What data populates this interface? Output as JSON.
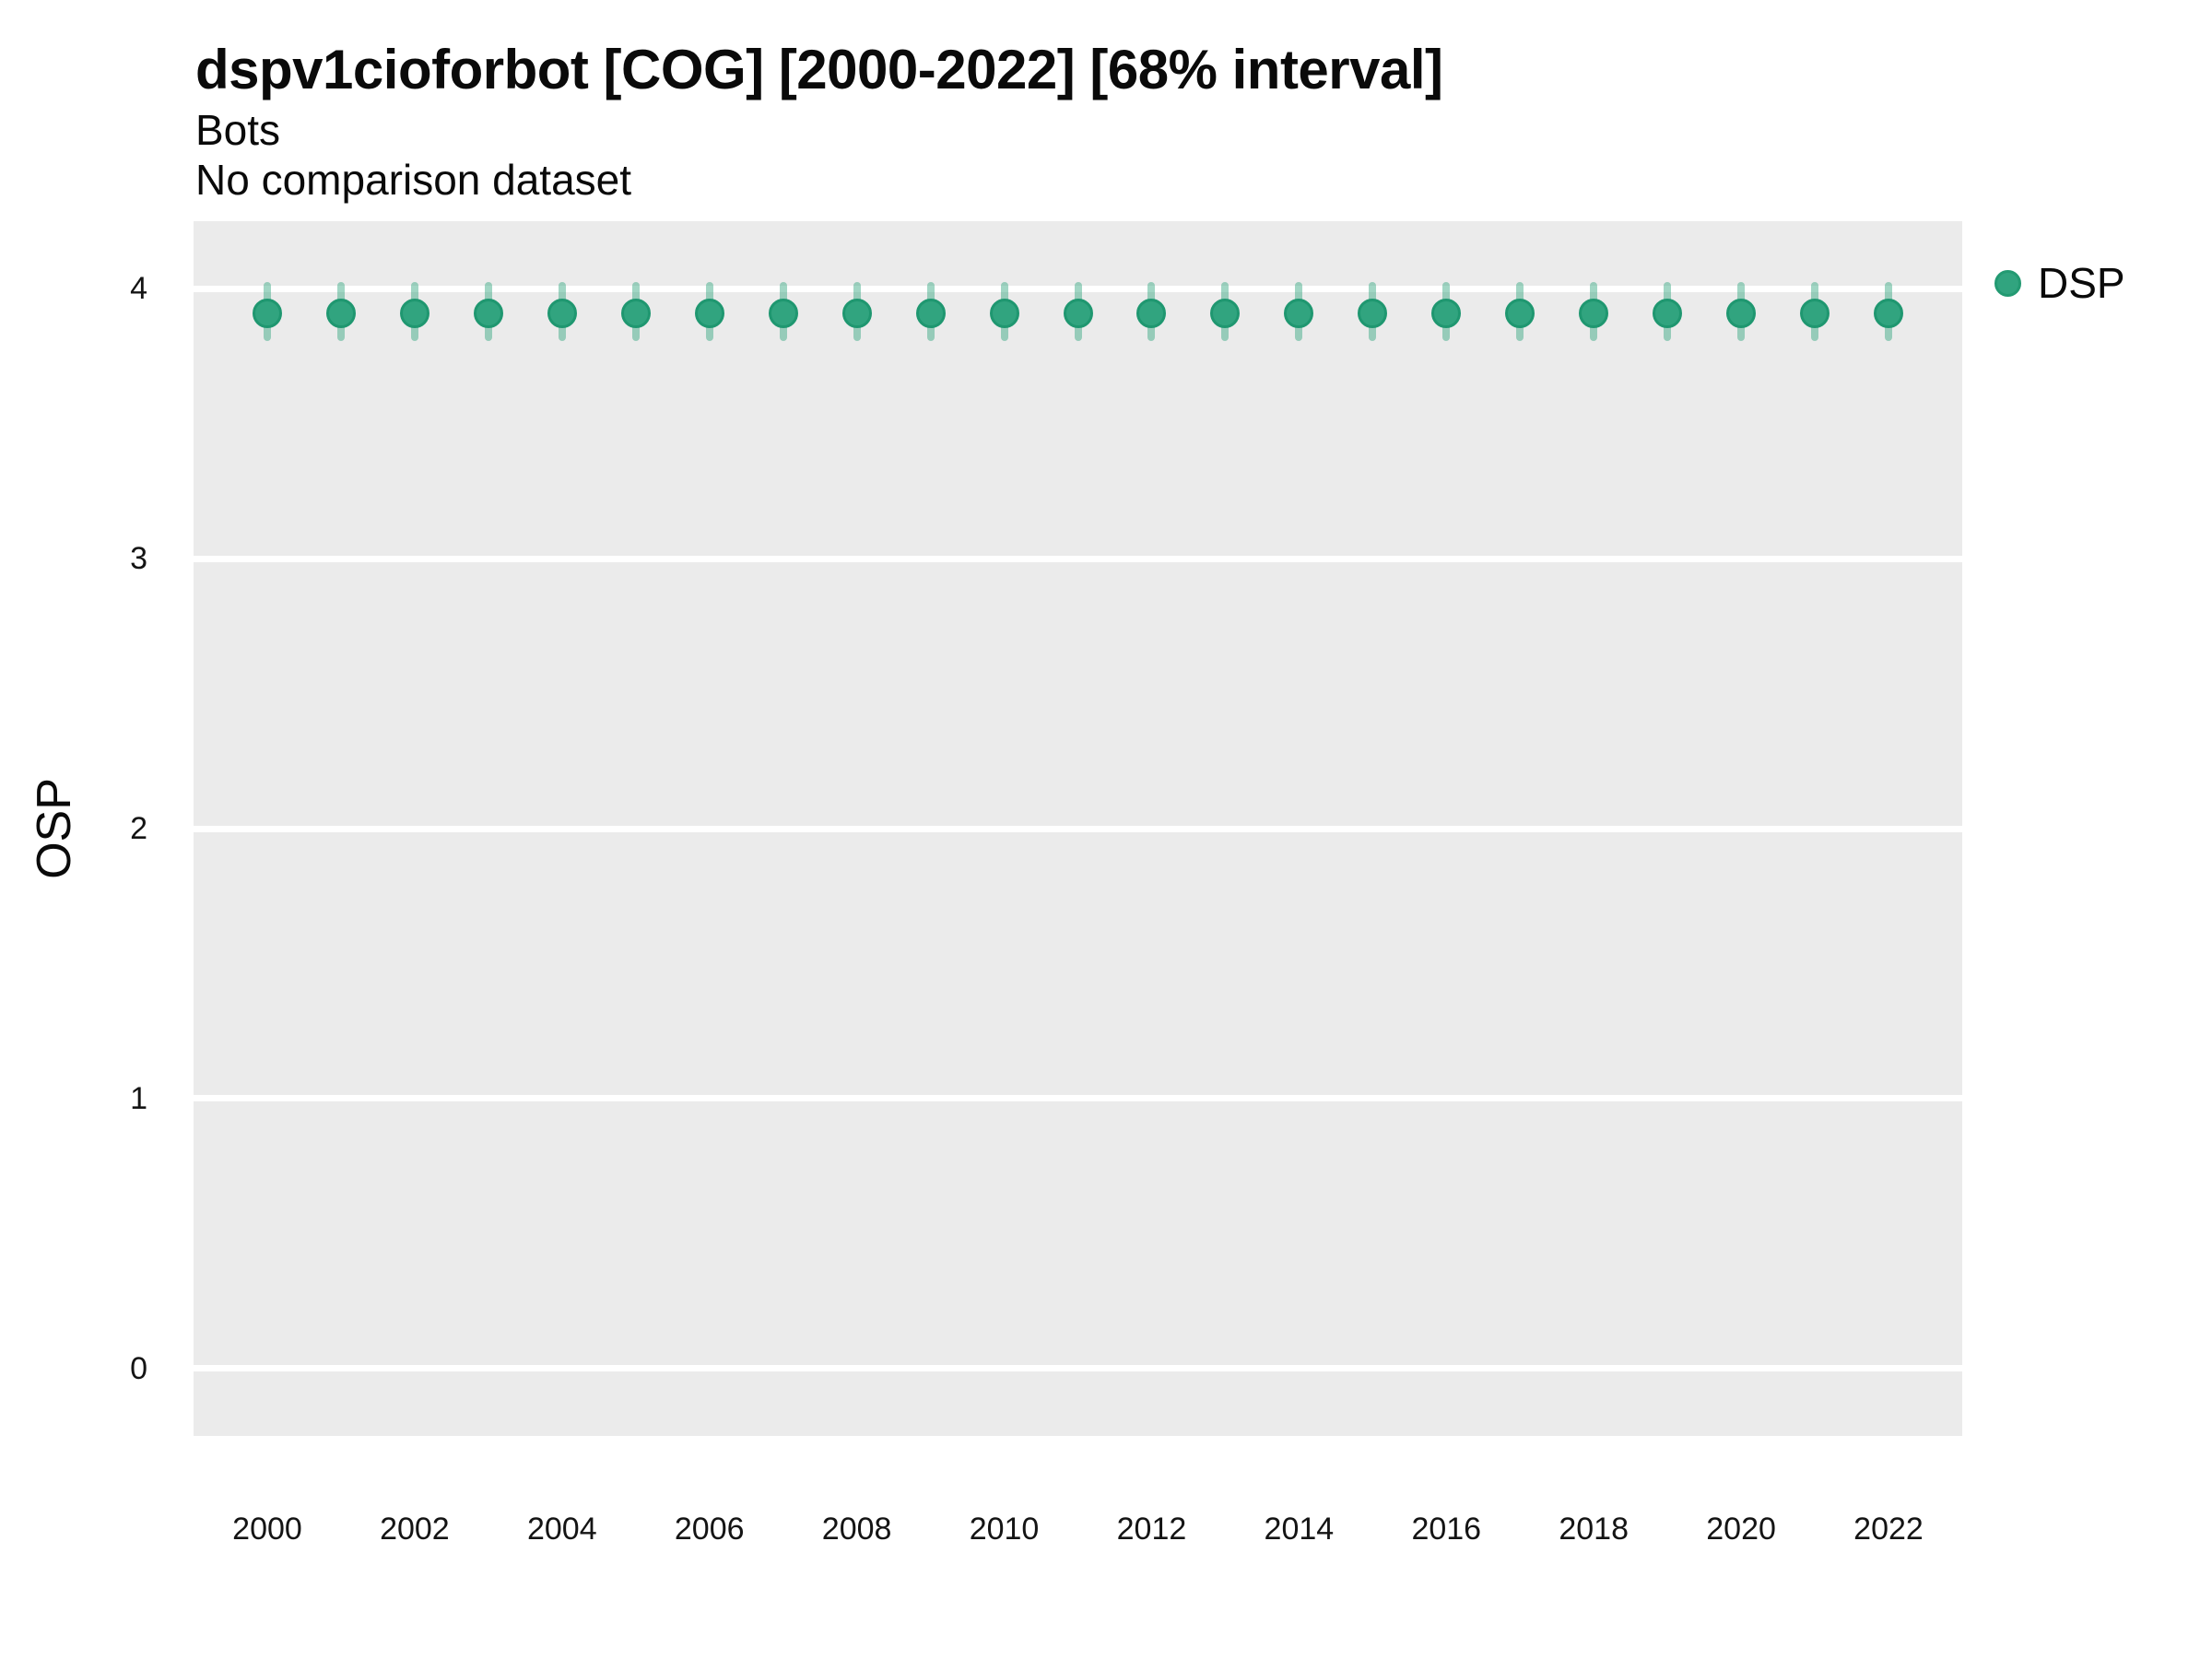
{
  "title": "dspv1cioforbot [COG] [2000-2022] [68% interval]",
  "subtitle_line1": "Bots",
  "subtitle_line2": "No comparison dataset",
  "legend": {
    "items": [
      {
        "label": "DSP",
        "color": "#31a47f",
        "stroke": "#239a72"
      }
    ],
    "position": "right-top"
  },
  "axes": {
    "y": {
      "label": "OSP",
      "tick_labels": [
        "4",
        "3",
        "2",
        "1",
        "0"
      ]
    },
    "x": {
      "tick_labels": [
        "2000",
        "2002",
        "2004",
        "2006",
        "2008",
        "2010",
        "2012",
        "2014",
        "2016",
        "2018",
        "2020",
        "2022"
      ]
    }
  },
  "colors": {
    "panel_background": "#ebebeb",
    "gridline": "#ffffff",
    "point_fill": "#31a47f",
    "point_stroke": "#1f9770",
    "interval_bar": "rgba(46,164,125,0.45)",
    "text": "#0a0a0a"
  },
  "chart_data": {
    "type": "scatter",
    "title": "dspv1cioforbot [COG] [2000-2022] [68% interval]",
    "subtitle": "Bots",
    "annotation": "No comparison dataset",
    "interval_label": "68% interval",
    "xlabel": "",
    "ylabel": "OSP",
    "ylim": [
      -0.25,
      4.25
    ],
    "yticks": [
      4,
      3,
      2,
      1,
      0
    ],
    "xticks": [
      2000,
      2002,
      2004,
      2006,
      2008,
      2010,
      2012,
      2014,
      2016,
      2018,
      2020,
      2022
    ],
    "grid": "major-horizontal-only",
    "legend_position": "right-top",
    "x": [
      2000,
      2001,
      2002,
      2003,
      2004,
      2005,
      2006,
      2007,
      2008,
      2009,
      2010,
      2011,
      2012,
      2013,
      2014,
      2015,
      2016,
      2017,
      2018,
      2019,
      2020,
      2021,
      2022
    ],
    "series": [
      {
        "name": "DSP",
        "values": [
          3.91,
          3.91,
          3.91,
          3.91,
          3.91,
          3.91,
          3.91,
          3.91,
          3.91,
          3.91,
          3.91,
          3.91,
          3.91,
          3.91,
          3.91,
          3.91,
          3.91,
          3.91,
          3.91,
          3.91,
          3.91,
          3.91,
          3.91
        ],
        "interval_low": [
          3.82,
          3.82,
          3.82,
          3.82,
          3.82,
          3.82,
          3.82,
          3.82,
          3.82,
          3.82,
          3.82,
          3.82,
          3.82,
          3.82,
          3.82,
          3.82,
          3.82,
          3.82,
          3.82,
          3.82,
          3.82,
          3.82,
          3.82
        ],
        "interval_high": [
          4.01,
          4.01,
          4.01,
          4.01,
          4.01,
          4.01,
          4.01,
          4.01,
          4.01,
          4.01,
          4.01,
          4.01,
          4.01,
          4.01,
          4.01,
          4.01,
          4.01,
          4.01,
          4.01,
          4.01,
          4.01,
          4.01,
          4.01
        ]
      }
    ]
  }
}
